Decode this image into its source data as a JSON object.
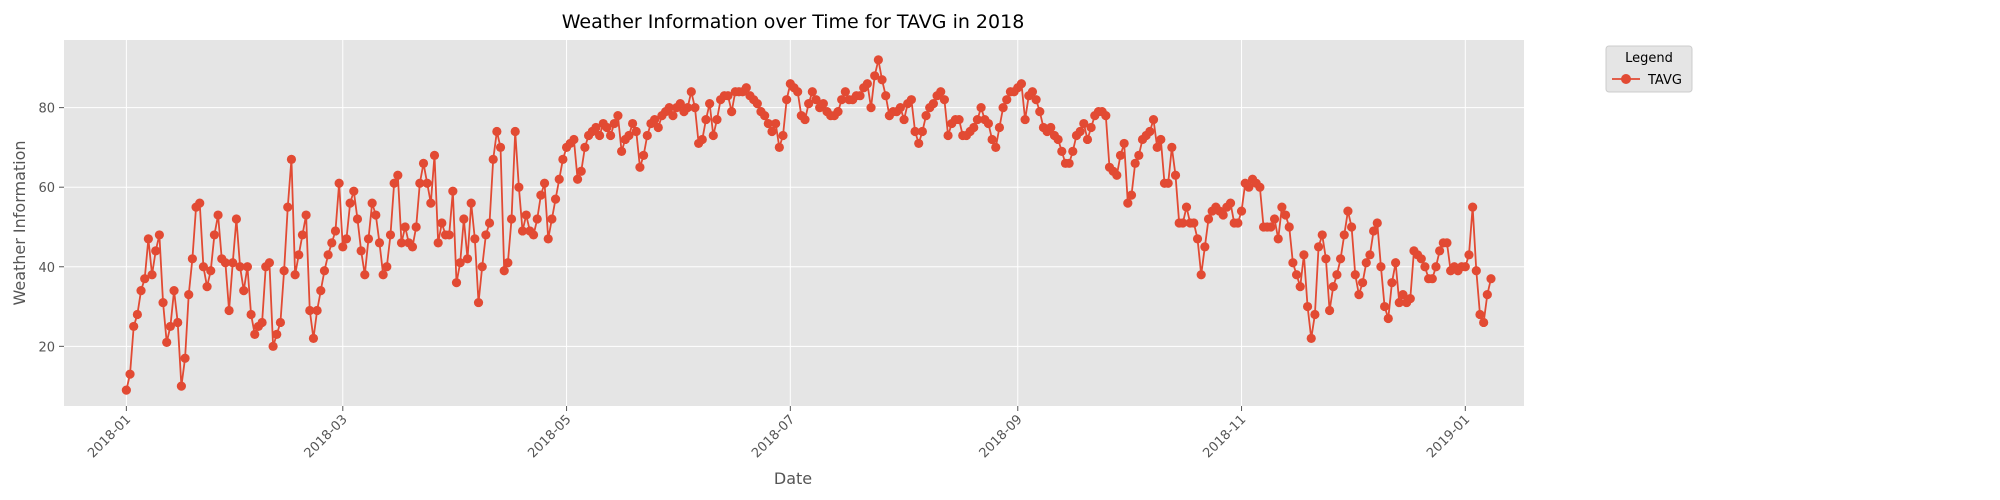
{
  "chart_data": {
    "type": "line",
    "title": "Weather Information over Time for TAVG in 2018",
    "xlabel": "Date",
    "ylabel": "Weather Information",
    "xlim": [
      "2017-12-15",
      "2019-01-17"
    ],
    "ylim": [
      5,
      97
    ],
    "x_ticks": [
      "2018-01",
      "2018-03",
      "2018-05",
      "2018-07",
      "2018-09",
      "2018-11",
      "2019-01"
    ],
    "y_ticks": [
      20,
      40,
      60,
      80
    ],
    "grid": true,
    "legend": {
      "title": "Legend",
      "placement": "outside-top-right"
    },
    "colors": {
      "series": "#E24A33",
      "plot_bg": "#E5E5E5",
      "grid": "#FFFFFF"
    },
    "series": [
      {
        "name": "TAVG",
        "x_start": "2018-01-01",
        "x_step_days": 1,
        "values": [
          9,
          13,
          25,
          28,
          34,
          37,
          47,
          38,
          44,
          48,
          31,
          21,
          25,
          34,
          26,
          10,
          17,
          33,
          42,
          55,
          56,
          40,
          35,
          39,
          48,
          53,
          42,
          41,
          29,
          41,
          52,
          40,
          34,
          40,
          28,
          23,
          25,
          26,
          40,
          41,
          20,
          23,
          26,
          39,
          55,
          67,
          38,
          43,
          48,
          53,
          29,
          22,
          29,
          34,
          39,
          43,
          46,
          49,
          61,
          45,
          47,
          56,
          59,
          52,
          44,
          38,
          47,
          56,
          53,
          46,
          38,
          40,
          48,
          61,
          63,
          46,
          50,
          46,
          45,
          50,
          61,
          66,
          61,
          56,
          68,
          46,
          51,
          48,
          48,
          59,
          36,
          41,
          52,
          42,
          56,
          47,
          31,
          40,
          48,
          51,
          67,
          74,
          70,
          39,
          41,
          52,
          74,
          60,
          49,
          53,
          49,
          48,
          52,
          58,
          61,
          47,
          52,
          57,
          62,
          67,
          70,
          71,
          72,
          62,
          64,
          70,
          73,
          74,
          75,
          73,
          76,
          75,
          73,
          76,
          78,
          69,
          72,
          73,
          76,
          74,
          65,
          68,
          73,
          76,
          77,
          75,
          78,
          79,
          80,
          78,
          80,
          81,
          79,
          80,
          84,
          80,
          71,
          72,
          77,
          81,
          73,
          77,
          82,
          83,
          83,
          79,
          84,
          84,
          84,
          85,
          83,
          82,
          81,
          79,
          78,
          76,
          74,
          76,
          70,
          73,
          82,
          86,
          85,
          84,
          78,
          77,
          81,
          84,
          82,
          80,
          81,
          79,
          78,
          78,
          79,
          82,
          84,
          82,
          82,
          83,
          83,
          85,
          86,
          80,
          88,
          92,
          87,
          83,
          78,
          79,
          79,
          80,
          77,
          81,
          82,
          74,
          71,
          74,
          78,
          80,
          81,
          83,
          84,
          82,
          73,
          76,
          77,
          77,
          73,
          73,
          74,
          75,
          77,
          80,
          77,
          76,
          72,
          70,
          75,
          80,
          82,
          84,
          84,
          85,
          86,
          77,
          83,
          84,
          82,
          79,
          75,
          74,
          75,
          73,
          72,
          69,
          66,
          66,
          69,
          73,
          74,
          76,
          72,
          75,
          78,
          79,
          79,
          78,
          65,
          64,
          63,
          68,
          71,
          56,
          58,
          66,
          68,
          72,
          73,
          74,
          77,
          70,
          72,
          61,
          61,
          70,
          63,
          51,
          51,
          55,
          51,
          51,
          47,
          38,
          45,
          52,
          54,
          55,
          54,
          53,
          55,
          56,
          51,
          51,
          54,
          61,
          60,
          62,
          61,
          60,
          50,
          50,
          50,
          52,
          47,
          55,
          53,
          50,
          41,
          38,
          35,
          43,
          30,
          22,
          28,
          45,
          48,
          42,
          29,
          35,
          38,
          42,
          48,
          54,
          50,
          38,
          33,
          36,
          41,
          43,
          49,
          51,
          40,
          30,
          27,
          36,
          41,
          31,
          33,
          31,
          32,
          44,
          43,
          42,
          40,
          37,
          37,
          40,
          44,
          46,
          46,
          39,
          40,
          39,
          40,
          40,
          43,
          55,
          39,
          28,
          26,
          33,
          37
        ]
      }
    ]
  }
}
